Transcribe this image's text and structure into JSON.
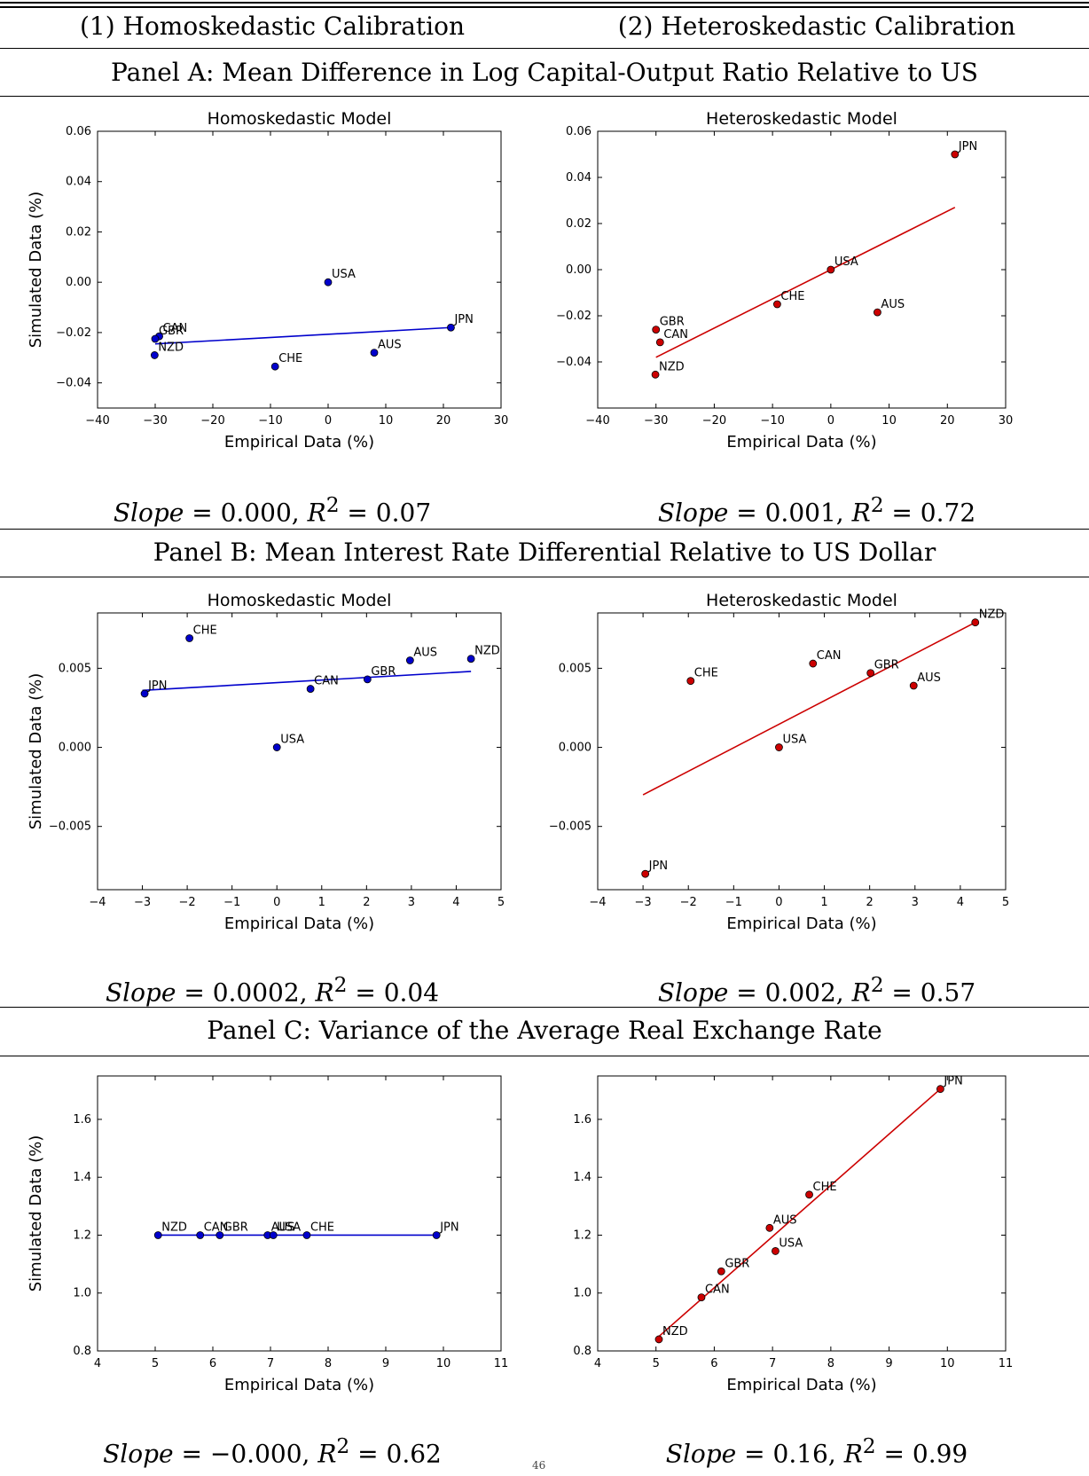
{
  "columns": [
    "(1) Homoskedastic Calibration",
    "(2) Heteroskedastic Calibration"
  ],
  "panels": [
    {
      "title": "Panel A: Mean Difference in Log Capital-Output Ratio Relative to US",
      "stats": [
        {
          "slope_label": "Slope",
          "slope_value": "0.000",
          "r2_value": "0.07"
        },
        {
          "slope_label": "Slope",
          "slope_value": "0.001",
          "r2_value": "0.72"
        }
      ]
    },
    {
      "title": "Panel B: Mean Interest Rate Differential Relative to US Dollar",
      "stats": [
        {
          "slope_label": "Slope",
          "slope_value": "0.0002",
          "r2_value": "0.04"
        },
        {
          "slope_label": "Slope",
          "slope_value": "0.002",
          "r2_value": "0.57"
        }
      ]
    },
    {
      "title": "Panel C: Variance of the Average Real Exchange Rate",
      "stats": [
        {
          "slope_label": "Slope",
          "slope_value": "−0.000",
          "r2_value": "0.62"
        },
        {
          "slope_label": "Slope",
          "slope_value": "0.16",
          "r2_value": "0.99"
        }
      ]
    }
  ],
  "page_number": "46",
  "chart_data": [
    {
      "id": "A1",
      "type": "scatter",
      "title": "Homoskedastic Model",
      "xlabel": "Empirical Data (%)",
      "ylabel": "Simulated Data (%)",
      "xlim": [
        -40,
        30
      ],
      "ylim": [
        -0.05,
        0.06
      ],
      "xticks": [
        -40,
        -30,
        -20,
        -10,
        0,
        10,
        20,
        30
      ],
      "xtick_labels": [
        "−40",
        "−30",
        "−20",
        "−10",
        "0",
        "10",
        "20",
        "30"
      ],
      "yticks": [
        -0.04,
        -0.02,
        0.0,
        0.02,
        0.04,
        0.06
      ],
      "ytick_labels": [
        "−0.04",
        "−0.02",
        "0.00",
        "0.02",
        "0.04",
        "0.06"
      ],
      "color": "#0000cc",
      "points": [
        {
          "label": "USA",
          "x": 0.0,
          "y": 0.0
        },
        {
          "label": "JPN",
          "x": 21.3,
          "y": -0.018
        },
        {
          "label": "CAN",
          "x": -29.3,
          "y": -0.0215
        },
        {
          "label": "GBR",
          "x": -30.0,
          "y": -0.0225
        },
        {
          "label": "NZD",
          "x": -30.1,
          "y": -0.029
        },
        {
          "label": "AUS",
          "x": 8.0,
          "y": -0.028
        },
        {
          "label": "CHE",
          "x": -9.2,
          "y": -0.0335
        }
      ],
      "fit": {
        "x": [
          -30,
          21.3
        ],
        "y": [
          -0.0245,
          -0.018
        ]
      }
    },
    {
      "id": "A2",
      "type": "scatter",
      "title": "Heteroskedastic Model",
      "xlabel": "Empirical Data (%)",
      "ylabel": "",
      "xlim": [
        -40,
        30
      ],
      "ylim": [
        -0.06,
        0.06
      ],
      "xticks": [
        -40,
        -30,
        -20,
        -10,
        0,
        10,
        20,
        30
      ],
      "xtick_labels": [
        "−40",
        "−30",
        "−20",
        "−10",
        "0",
        "10",
        "20",
        "30"
      ],
      "yticks": [
        -0.04,
        -0.02,
        0.0,
        0.02,
        0.04,
        0.06
      ],
      "ytick_labels": [
        "−0.04",
        "−0.02",
        "0.00",
        "0.02",
        "0.04",
        "0.06"
      ],
      "color": "#cc0000",
      "points": [
        {
          "label": "JPN",
          "x": 21.3,
          "y": 0.05
        },
        {
          "label": "USA",
          "x": 0.0,
          "y": 0.0
        },
        {
          "label": "CHE",
          "x": -9.2,
          "y": -0.015
        },
        {
          "label": "AUS",
          "x": 8.0,
          "y": -0.0185
        },
        {
          "label": "GBR",
          "x": -30.0,
          "y": -0.026
        },
        {
          "label": "CAN",
          "x": -29.3,
          "y": -0.0315
        },
        {
          "label": "NZD",
          "x": -30.1,
          "y": -0.0455
        }
      ],
      "fit": {
        "x": [
          -30,
          21.3
        ],
        "y": [
          -0.038,
          0.027
        ]
      }
    },
    {
      "id": "B1",
      "type": "scatter",
      "title": "Homoskedastic Model",
      "xlabel": "Empirical Data (%)",
      "ylabel": "Simulated Data (%)",
      "xlim": [
        -4,
        5
      ],
      "ylim": [
        -0.009,
        0.0085
      ],
      "xticks": [
        -4,
        -3,
        -2,
        -1,
        0,
        1,
        2,
        3,
        4,
        5
      ],
      "xtick_labels": [
        "−4",
        "−3",
        "−2",
        "−1",
        "0",
        "1",
        "2",
        "3",
        "4",
        "5"
      ],
      "yticks": [
        -0.005,
        0.0,
        0.005
      ],
      "ytick_labels": [
        "−0.005",
        "0.000",
        "0.005"
      ],
      "color": "#0000cc",
      "points": [
        {
          "label": "CHE",
          "x": -1.95,
          "y": 0.0069
        },
        {
          "label": "AUS",
          "x": 2.97,
          "y": 0.0055
        },
        {
          "label": "NZD",
          "x": 4.33,
          "y": 0.0056
        },
        {
          "label": "JPN",
          "x": -2.95,
          "y": 0.0034
        },
        {
          "label": "CAN",
          "x": 0.75,
          "y": 0.0037
        },
        {
          "label": "GBR",
          "x": 2.02,
          "y": 0.0043
        },
        {
          "label": "USA",
          "x": 0.0,
          "y": 0.0
        }
      ],
      "fit": {
        "x": [
          -3,
          4.33
        ],
        "y": [
          0.0036,
          0.0048
        ]
      }
    },
    {
      "id": "B2",
      "type": "scatter",
      "title": "Heteroskedastic Model",
      "xlabel": "Empirical Data (%)",
      "ylabel": "",
      "xlim": [
        -4,
        5
      ],
      "ylim": [
        -0.009,
        0.0085
      ],
      "xticks": [
        -4,
        -3,
        -2,
        -1,
        0,
        1,
        2,
        3,
        4,
        5
      ],
      "xtick_labels": [
        "−4",
        "−3",
        "−2",
        "−1",
        "0",
        "1",
        "2",
        "3",
        "4",
        "5"
      ],
      "yticks": [
        -0.005,
        0.0,
        0.005
      ],
      "ytick_labels": [
        "−0.005",
        "0.000",
        "0.005"
      ],
      "color": "#cc0000",
      "points": [
        {
          "label": "NZD",
          "x": 4.33,
          "y": 0.0079
        },
        {
          "label": "CAN",
          "x": 0.75,
          "y": 0.0053
        },
        {
          "label": "GBR",
          "x": 2.02,
          "y": 0.0047
        },
        {
          "label": "CHE",
          "x": -1.95,
          "y": 0.0042
        },
        {
          "label": "AUS",
          "x": 2.97,
          "y": 0.0039
        },
        {
          "label": "USA",
          "x": 0.0,
          "y": 0.0
        },
        {
          "label": "JPN",
          "x": -2.95,
          "y": -0.008
        }
      ],
      "fit": {
        "x": [
          -3,
          4.33
        ],
        "y": [
          -0.003,
          0.0079
        ]
      }
    },
    {
      "id": "C1",
      "type": "scatter",
      "title": "",
      "xlabel": "Empirical Data (%)",
      "ylabel": "Simulated Data (%)",
      "xlim": [
        4,
        11
      ],
      "ylim": [
        0.8,
        1.75
      ],
      "xticks": [
        4,
        5,
        6,
        7,
        8,
        9,
        10,
        11
      ],
      "xtick_labels": [
        "4",
        "5",
        "6",
        "7",
        "8",
        "9",
        "10",
        "11"
      ],
      "yticks": [
        0.8,
        1.0,
        1.2,
        1.4,
        1.6
      ],
      "ytick_labels": [
        "0.8",
        "1.0",
        "1.2",
        "1.4",
        "1.6"
      ],
      "color": "#0000cc",
      "points": [
        {
          "label": "NZD",
          "x": 5.05,
          "y": 1.2
        },
        {
          "label": "CAN",
          "x": 5.78,
          "y": 1.2
        },
        {
          "label": "GBR",
          "x": 6.12,
          "y": 1.2
        },
        {
          "label": "AUS",
          "x": 6.95,
          "y": 1.2
        },
        {
          "label": "USA",
          "x": 7.05,
          "y": 1.2
        },
        {
          "label": "CHE",
          "x": 7.63,
          "y": 1.2
        },
        {
          "label": "JPN",
          "x": 9.88,
          "y": 1.2
        }
      ],
      "fit": {
        "x": [
          5.05,
          9.88
        ],
        "y": [
          1.2,
          1.2
        ]
      }
    },
    {
      "id": "C2",
      "type": "scatter",
      "title": "",
      "xlabel": "Empirical Data (%)",
      "ylabel": "",
      "xlim": [
        4,
        11
      ],
      "ylim": [
        0.8,
        1.75
      ],
      "xticks": [
        4,
        5,
        6,
        7,
        8,
        9,
        10,
        11
      ],
      "xtick_labels": [
        "4",
        "5",
        "6",
        "7",
        "8",
        "9",
        "10",
        "11"
      ],
      "yticks": [
        0.8,
        1.0,
        1.2,
        1.4,
        1.6
      ],
      "ytick_labels": [
        "0.8",
        "1.0",
        "1.2",
        "1.4",
        "1.6"
      ],
      "color": "#cc0000",
      "points": [
        {
          "label": "JPN",
          "x": 9.88,
          "y": 1.705
        },
        {
          "label": "CHE",
          "x": 7.63,
          "y": 1.34
        },
        {
          "label": "AUS",
          "x": 6.95,
          "y": 1.225
        },
        {
          "label": "USA",
          "x": 7.05,
          "y": 1.145
        },
        {
          "label": "GBR",
          "x": 6.12,
          "y": 1.075
        },
        {
          "label": "CAN",
          "x": 5.78,
          "y": 0.985
        },
        {
          "label": "NZD",
          "x": 5.05,
          "y": 0.84
        }
      ],
      "fit": {
        "x": [
          5.05,
          9.88
        ],
        "y": [
          0.85,
          1.705
        ]
      }
    }
  ]
}
